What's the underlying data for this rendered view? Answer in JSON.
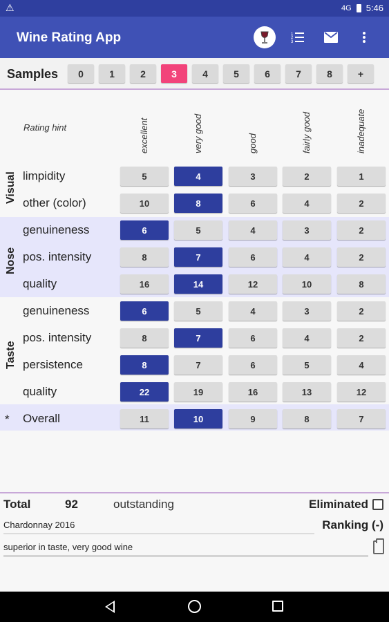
{
  "status": {
    "time": "5:46",
    "network": "4G"
  },
  "app": {
    "title": "Wine Rating App",
    "icons": [
      "wine-glass-icon",
      "list-icon",
      "mail-icon",
      "more-vert-icon"
    ]
  },
  "samples": {
    "label": "Samples",
    "buttons": [
      "0",
      "1",
      "2",
      "3",
      "4",
      "5",
      "6",
      "7",
      "8",
      "+"
    ],
    "active": "3",
    "active_color": "#f2437a"
  },
  "grid": {
    "hint": "Rating hint",
    "columns": [
      "excellent",
      "very good",
      "good",
      "fairly good",
      "inadequate"
    ],
    "groups": [
      {
        "label": "Visual",
        "rows": [
          {
            "label": "limpidity",
            "values": [
              "5",
              "4",
              "3",
              "2",
              "1"
            ],
            "selected": 1
          },
          {
            "label": "other (color)",
            "values": [
              "10",
              "8",
              "6",
              "4",
              "2"
            ],
            "selected": 1
          }
        ]
      },
      {
        "label": "Nose",
        "rows": [
          {
            "label": "genuineness",
            "values": [
              "6",
              "5",
              "4",
              "3",
              "2"
            ],
            "selected": 0
          },
          {
            "label": "pos. intensity",
            "values": [
              "8",
              "7",
              "6",
              "4",
              "2"
            ],
            "selected": 1
          },
          {
            "label": "quality",
            "values": [
              "16",
              "14",
              "12",
              "10",
              "8"
            ],
            "selected": 1
          }
        ]
      },
      {
        "label": "Taste",
        "rows": [
          {
            "label": "genuineness",
            "values": [
              "6",
              "5",
              "4",
              "3",
              "2"
            ],
            "selected": 0
          },
          {
            "label": "pos. intensity",
            "values": [
              "8",
              "7",
              "6",
              "4",
              "2"
            ],
            "selected": 1
          },
          {
            "label": "persistence",
            "values": [
              "8",
              "7",
              "6",
              "5",
              "4"
            ],
            "selected": 0
          },
          {
            "label": "quality",
            "values": [
              "22",
              "19",
              "16",
              "13",
              "12"
            ],
            "selected": 0
          }
        ]
      }
    ],
    "overall": {
      "marker": "*",
      "label": "Overall",
      "values": [
        "11",
        "10",
        "9",
        "8",
        "7"
      ],
      "selected": 1
    },
    "selected_color": "#2e3e9e"
  },
  "footer": {
    "total_label": "Total",
    "total_value": "92",
    "verdict": "outstanding",
    "eliminated_label": "Eliminated",
    "eliminated_checked": false,
    "wine_name": "Chardonnay 2016",
    "ranking": "Ranking (-)",
    "comment": "superior in taste, very good wine"
  }
}
